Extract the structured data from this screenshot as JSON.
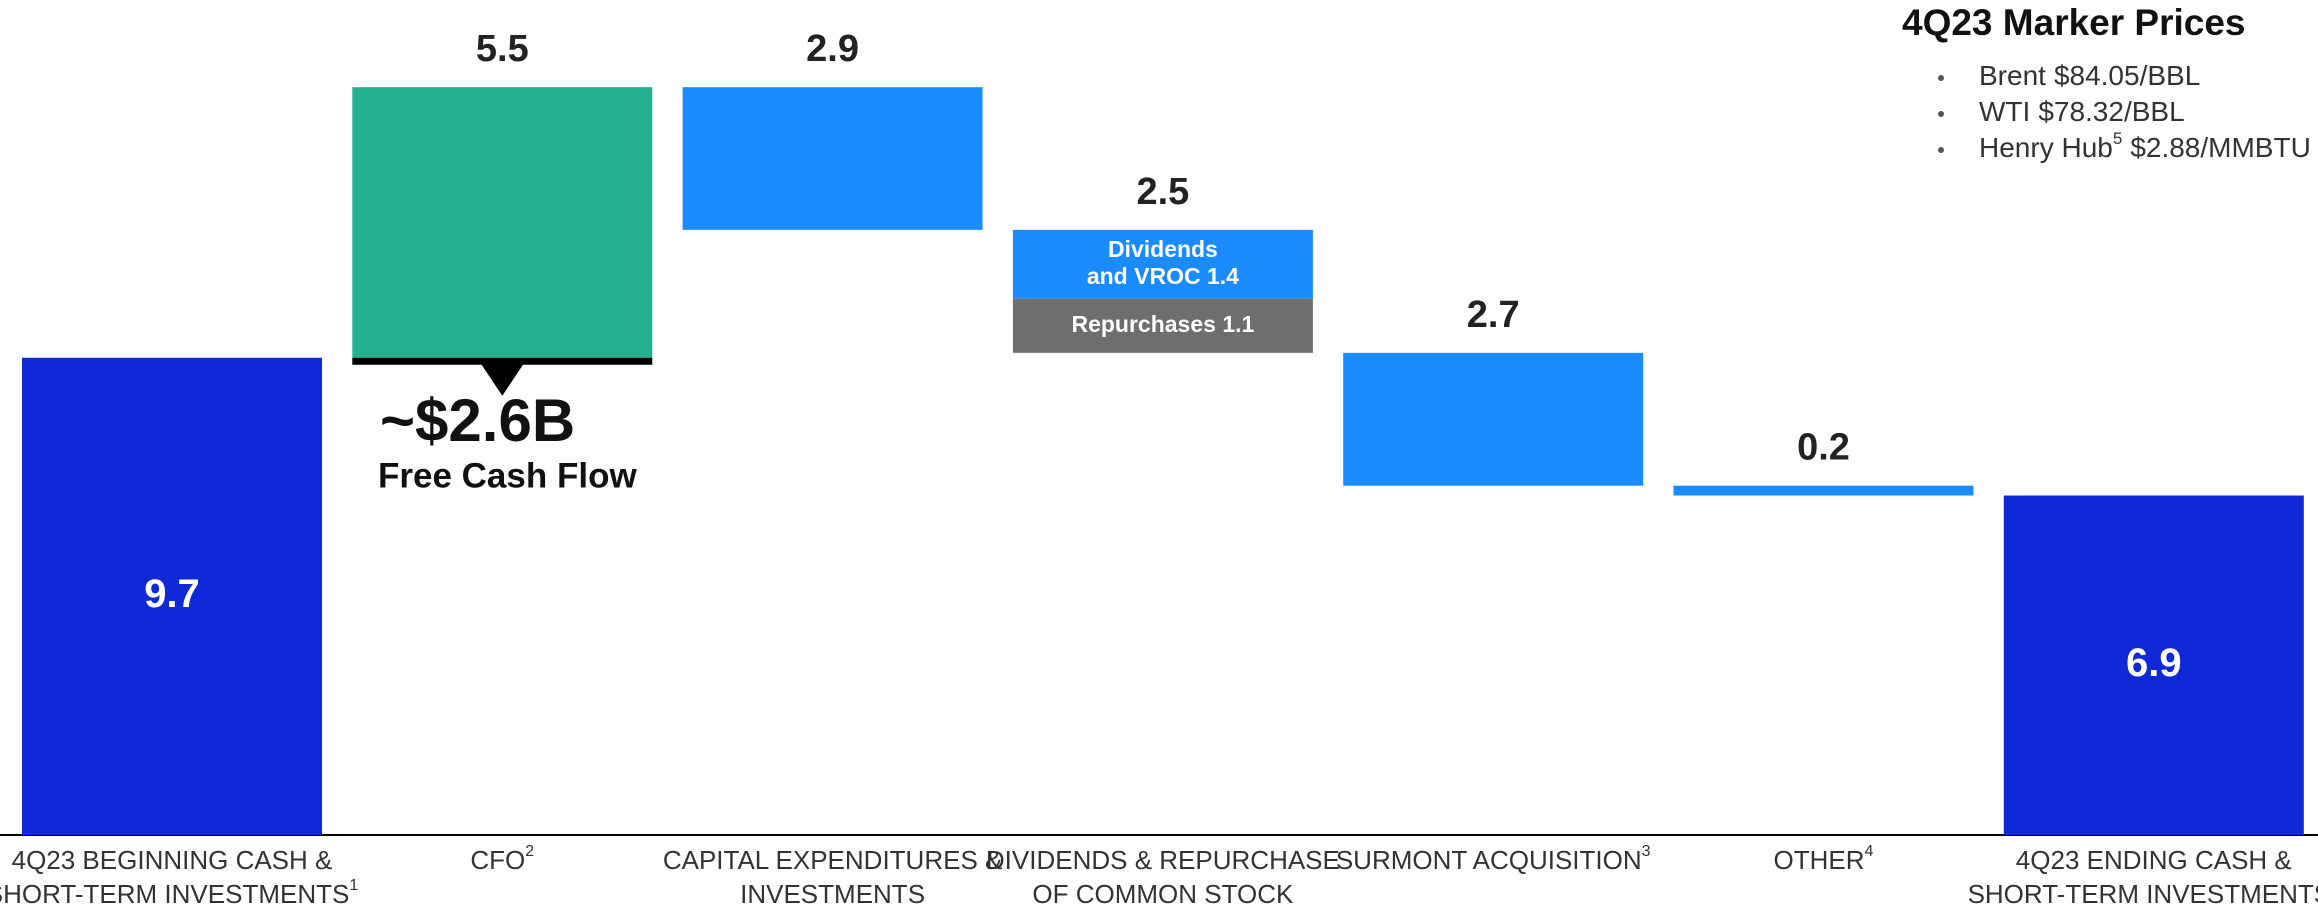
{
  "chart_data": {
    "type": "waterfall",
    "bars": [
      {
        "category": [
          "4Q23 BEGINNING CASH &",
          "SHORT-TERM INVESTMENTS"
        ],
        "note": "1",
        "kind": "total",
        "value": 9.7,
        "color": "#1029d6"
      },
      {
        "category": [
          "CFO"
        ],
        "note": "2",
        "kind": "increase",
        "value": 5.5,
        "color": "#22b091"
      },
      {
        "category": [
          "CAPITAL EXPENDITURES &",
          "INVESTMENTS"
        ],
        "kind": "decrease",
        "value": 2.9,
        "color": "#1a8cff"
      },
      {
        "category": [
          "DIVIDENDS & REPURCHASE",
          "OF COMMON STOCK"
        ],
        "kind": "decrease",
        "value": 2.5,
        "segments": [
          {
            "name": [
              "Dividends",
              "and VROC"
            ],
            "value": 1.4,
            "color": "#1a8cff"
          },
          {
            "name": [
              "Repurchases"
            ],
            "value": 1.1,
            "color": "#6e6e6e"
          }
        ]
      },
      {
        "category": [
          "SURMONT ACQUISITION"
        ],
        "note": "3",
        "kind": "decrease",
        "value": 2.7,
        "color": "#1a8cff"
      },
      {
        "category": [
          "OTHER"
        ],
        "note": "4",
        "kind": "decrease",
        "value": 0.2,
        "color": "#1a8cff"
      },
      {
        "category": [
          "4Q23 ENDING CASH &",
          "SHORT-TERM INVESTMENTS"
        ],
        "note": "1",
        "kind": "total",
        "value": 6.9,
        "color": "#1029d6"
      }
    ],
    "annotation": {
      "amount": "~$2.6B",
      "text": "Free Cash Flow"
    },
    "marker_prices": {
      "title": "4Q23 Marker Prices",
      "items": [
        {
          "name": "Brent",
          "price": "$84.05/BBL"
        },
        {
          "name": "WTI",
          "price": "$78.32/BBL"
        },
        {
          "name": "Henry Hub",
          "note": "5",
          "price": "$2.88/MMBTU"
        }
      ]
    }
  }
}
